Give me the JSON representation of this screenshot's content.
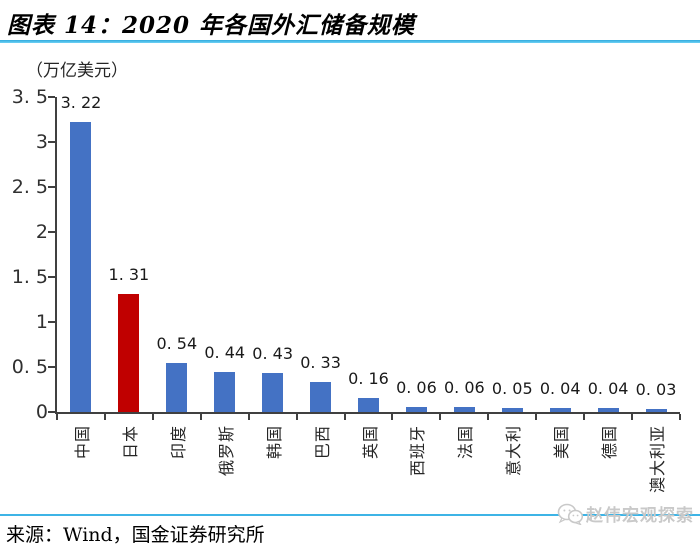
{
  "header": {
    "title": "图表 14：2020 年各国外汇储备规模"
  },
  "chart_data": {
    "type": "bar",
    "title": "图表 14：2020 年各国外汇储备规模",
    "unit_label": "（万亿美元）",
    "categories": [
      "中国",
      "日本",
      "印度",
      "俄罗斯",
      "韩国",
      "巴西",
      "英国",
      "西班牙",
      "法国",
      "意大利",
      "美国",
      "德国",
      "澳大利亚"
    ],
    "values": [
      3.22,
      1.31,
      0.54,
      0.44,
      0.43,
      0.33,
      0.16,
      0.06,
      0.06,
      0.05,
      0.04,
      0.04,
      0.03
    ],
    "highlight_index": 1,
    "bar_color_default": "#4472C4",
    "bar_color_highlight": "#C00000",
    "ylim": [
      0,
      3.5
    ],
    "ytick_step": 0.5,
    "grid": false,
    "legend": null,
    "value_labels_shown": true,
    "xlabel": "",
    "ylabel": ""
  },
  "footer": {
    "source": "来源：Wind，国金证券研究所",
    "watermark": "赵伟宏观探索"
  },
  "colors": {
    "accent_line": "#3DB4E6",
    "axis": "#404040",
    "watermark_gray": "#C9C9C9"
  }
}
